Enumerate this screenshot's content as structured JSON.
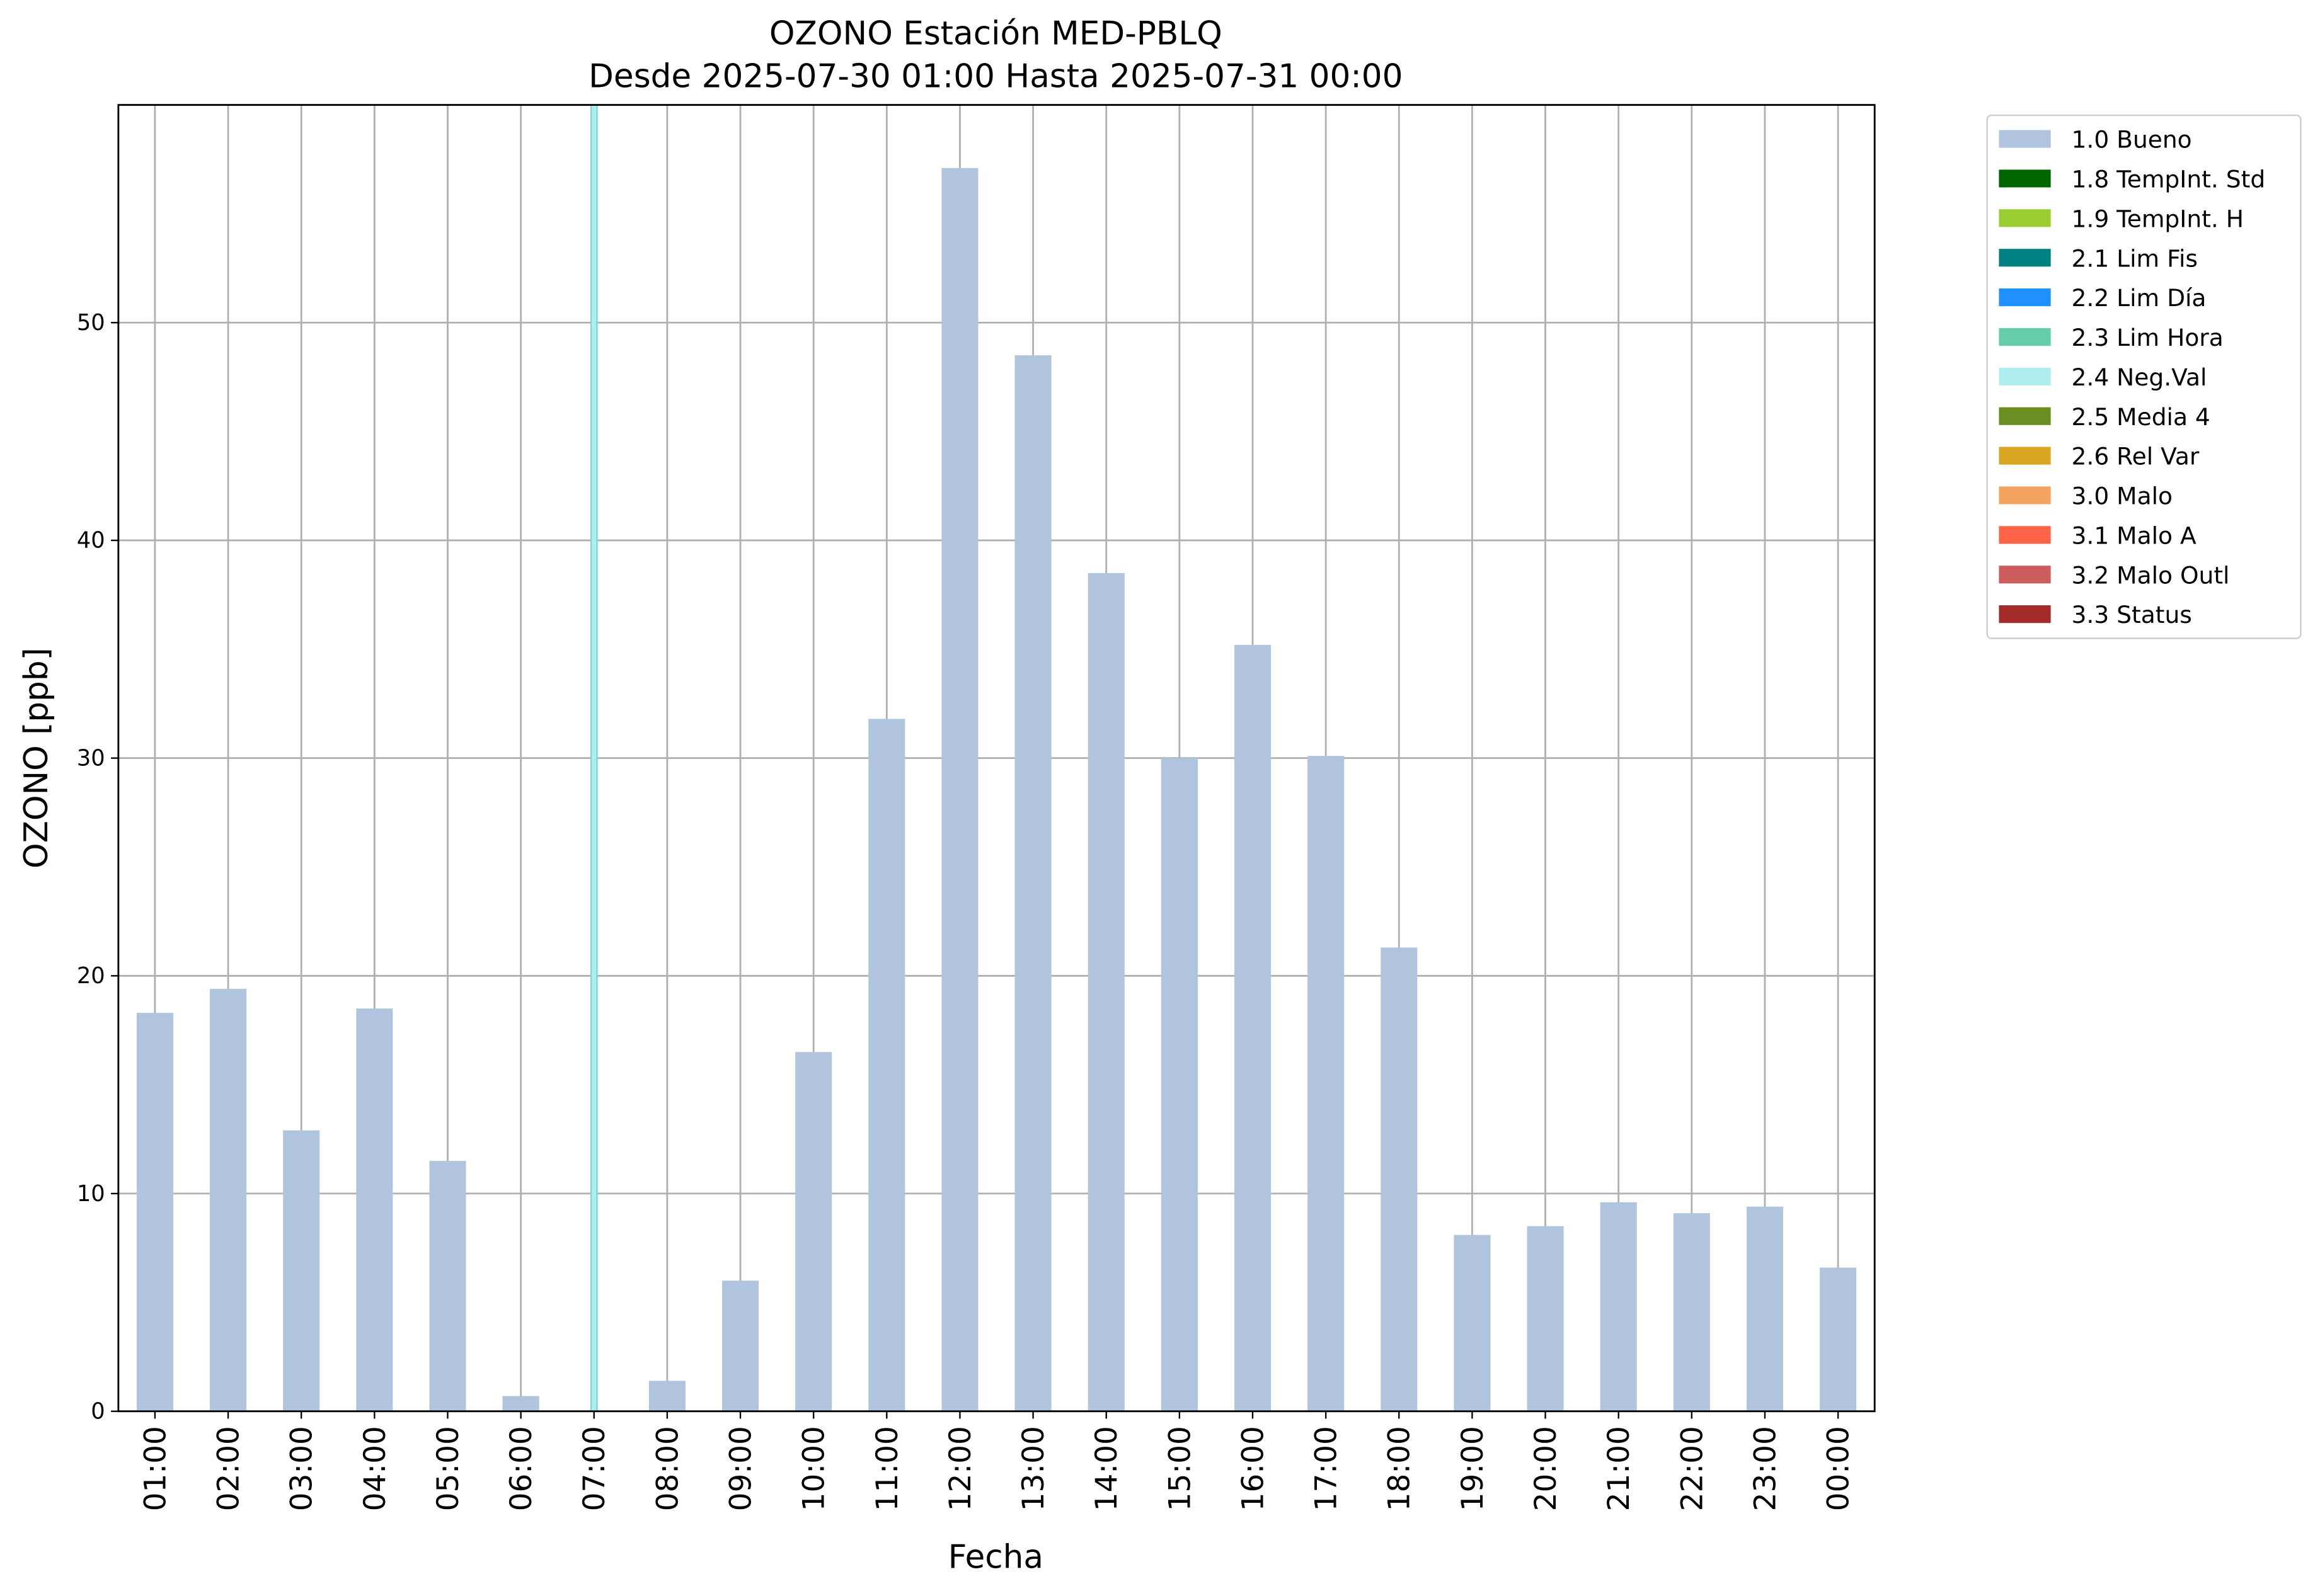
{
  "chart_data": {
    "type": "bar",
    "title": "OZONO Estación MED-PBLQ",
    "subtitle": "Desde 2025-07-30 01:00 Hasta 2025-07-31 00:00",
    "x_label": "Fecha",
    "y_label": "OZONO [ppb]",
    "categories": [
      "01:00",
      "02:00",
      "03:00",
      "04:00",
      "05:00",
      "06:00",
      "07:00",
      "08:00",
      "09:00",
      "10:00",
      "11:00",
      "12:00",
      "13:00",
      "14:00",
      "15:00",
      "16:00",
      "17:00",
      "18:00",
      "19:00",
      "20:00",
      "21:00",
      "22:00",
      "23:00",
      "00:00"
    ],
    "stacked": true,
    "series": [
      {
        "name": "1.0 Bueno",
        "color": "#b0c4de",
        "values": [
          18.3,
          19.4,
          12.9,
          18.5,
          11.5,
          0.7,
          null,
          1.4,
          6.0,
          16.5,
          31.8,
          57.1,
          48.5,
          38.5,
          30.0,
          35.2,
          30.1,
          21.3,
          8.1,
          8.5,
          9.6,
          9.1,
          9.4,
          6.6
        ]
      },
      {
        "name": "1.8 TempInt. Std",
        "color": "#006400",
        "values": [
          null,
          null,
          null,
          null,
          null,
          null,
          null,
          null,
          null,
          null,
          null,
          null,
          null,
          null,
          null,
          null,
          null,
          null,
          null,
          null,
          null,
          null,
          null,
          null
        ]
      },
      {
        "name": "1.9 TempInt. H",
        "color": "#9acd32",
        "values": [
          null,
          null,
          null,
          null,
          null,
          null,
          null,
          null,
          null,
          null,
          null,
          null,
          null,
          null,
          null,
          null,
          null,
          null,
          null,
          null,
          null,
          null,
          null,
          null
        ]
      },
      {
        "name": "2.1 Lim Fis",
        "color": "#008080",
        "values": [
          null,
          null,
          null,
          null,
          null,
          null,
          null,
          null,
          null,
          null,
          null,
          null,
          null,
          null,
          null,
          null,
          null,
          null,
          null,
          null,
          null,
          null,
          null,
          null
        ]
      },
      {
        "name": "2.2 Lim Día",
        "color": "#1e90ff",
        "values": [
          null,
          null,
          null,
          null,
          null,
          null,
          null,
          null,
          null,
          null,
          null,
          null,
          null,
          null,
          null,
          null,
          null,
          null,
          null,
          null,
          null,
          null,
          null,
          null
        ]
      },
      {
        "name": "2.3 Lim Hora",
        "color": "#66cdaa",
        "values": [
          null,
          null,
          null,
          null,
          null,
          null,
          null,
          null,
          null,
          null,
          null,
          null,
          null,
          null,
          null,
          null,
          null,
          null,
          null,
          null,
          null,
          null,
          null,
          null
        ]
      },
      {
        "name": "2.4 Neg.Val",
        "color": "#afeeee",
        "values": [
          null,
          null,
          null,
          null,
          null,
          null,
          60,
          null,
          null,
          null,
          null,
          null,
          null,
          null,
          null,
          null,
          null,
          null,
          null,
          null,
          null,
          null,
          null,
          null
        ]
      },
      {
        "name": "2.5 Media 4",
        "color": "#6b8e23",
        "values": [
          null,
          null,
          null,
          null,
          null,
          null,
          null,
          null,
          null,
          null,
          null,
          null,
          null,
          null,
          null,
          null,
          null,
          null,
          null,
          null,
          null,
          null,
          null,
          null
        ]
      },
      {
        "name": "2.6 Rel Var",
        "color": "#daa520",
        "values": [
          null,
          null,
          null,
          null,
          null,
          null,
          null,
          null,
          null,
          null,
          null,
          null,
          null,
          null,
          null,
          null,
          null,
          null,
          null,
          null,
          null,
          null,
          null,
          null
        ]
      },
      {
        "name": "3.0 Malo",
        "color": "#f4a460",
        "values": [
          null,
          null,
          null,
          null,
          null,
          null,
          null,
          null,
          null,
          null,
          null,
          null,
          null,
          null,
          null,
          null,
          null,
          null,
          null,
          null,
          null,
          null,
          null,
          null
        ]
      },
      {
        "name": "3.1 Malo A",
        "color": "#ff6347",
        "values": [
          null,
          null,
          null,
          null,
          null,
          null,
          null,
          null,
          null,
          null,
          null,
          null,
          null,
          null,
          null,
          null,
          null,
          null,
          null,
          null,
          null,
          null,
          null,
          null
        ]
      },
      {
        "name": "3.2 Malo Outl",
        "color": "#cd5c5c",
        "values": [
          null,
          null,
          null,
          null,
          null,
          null,
          null,
          null,
          null,
          null,
          null,
          null,
          null,
          null,
          null,
          null,
          null,
          null,
          null,
          null,
          null,
          null,
          null,
          null
        ]
      },
      {
        "name": "3.3 Status",
        "color": "#a52a2a",
        "values": [
          null,
          null,
          null,
          null,
          null,
          null,
          null,
          null,
          null,
          null,
          null,
          null,
          null,
          null,
          null,
          null,
          null,
          null,
          null,
          null,
          null,
          null,
          null,
          null
        ]
      }
    ],
    "ylim": [
      0,
      60
    ],
    "yticks": [
      0,
      10,
      20,
      30,
      40,
      50
    ],
    "grid": true,
    "legend": "outside-upper-right"
  }
}
